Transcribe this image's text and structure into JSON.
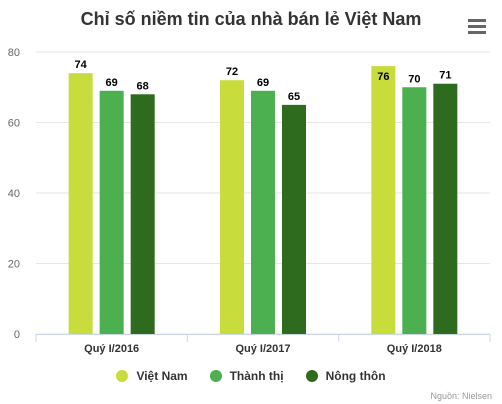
{
  "header": {
    "title": "Chỉ số niềm tin của nhà bán lẻ Việt Nam"
  },
  "credit": "Nguồn: Nielsen",
  "chart_data": {
    "type": "bar",
    "title": "Chỉ số niềm tin của nhà bán lẻ Việt Nam",
    "xlabel": "",
    "ylabel": "",
    "categories": [
      "Quý I/2016",
      "Quý I/2017",
      "Quý I/2018"
    ],
    "series": [
      {
        "name": "Việt Nam",
        "color": "#c8dc3c",
        "values": [
          74,
          72,
          76
        ]
      },
      {
        "name": "Thành thị",
        "color": "#4caf50",
        "values": [
          69,
          69,
          70
        ]
      },
      {
        "name": "Nông thôn",
        "color": "#2e6b1f",
        "values": [
          68,
          65,
          71
        ]
      }
    ],
    "ylim": [
      0,
      80
    ],
    "yticks": [
      0,
      20,
      40,
      60,
      80
    ],
    "grid": true,
    "data_labels": true,
    "legend_position": "bottom"
  }
}
